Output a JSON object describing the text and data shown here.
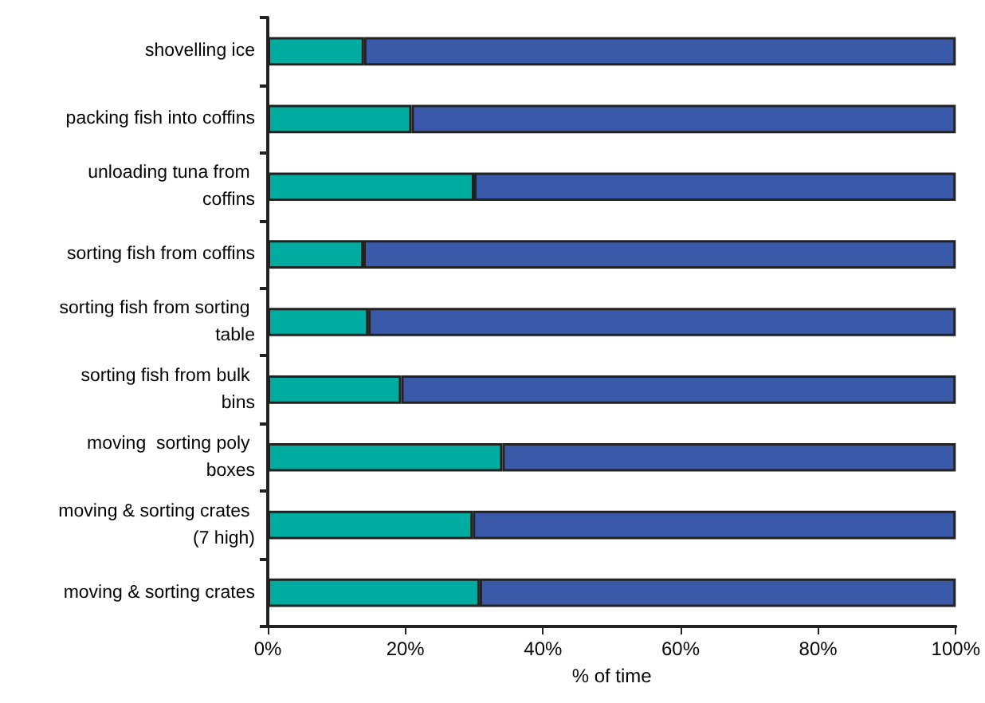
{
  "chart_data": {
    "type": "bar",
    "orientation": "horizontal",
    "stacked": true,
    "xlabel": "% of time",
    "categories": [
      "shovelling ice",
      "packing fish into coffins",
      "unloading tuna from coffins",
      "sorting fish from coffins",
      "sorting fish from sorting table",
      "sorting fish from bulk bins",
      "moving  sorting poly boxes",
      "moving & sorting crates (7 high)",
      "moving & sorting crates"
    ],
    "series": [
      {
        "color": "#00ab9f",
        "values": [
          14,
          20.9,
          30,
          13.9,
          14.6,
          19.4,
          34.1,
          29.8,
          30.8
        ]
      },
      {
        "color": "#3a59a8",
        "values": [
          86,
          79.1,
          70,
          86.1,
          85.4,
          80.6,
          65.9,
          70.2,
          69.2
        ]
      }
    ],
    "xlim": [
      0,
      100
    ],
    "xticks": [
      {
        "value": 0,
        "label": "0%"
      },
      {
        "value": 20,
        "label": "20%"
      },
      {
        "value": 40,
        "label": "40%"
      },
      {
        "value": 60,
        "label": "60%"
      },
      {
        "value": 80,
        "label": "80%"
      },
      {
        "value": 100,
        "label": "100%"
      }
    ],
    "grid": false
  }
}
